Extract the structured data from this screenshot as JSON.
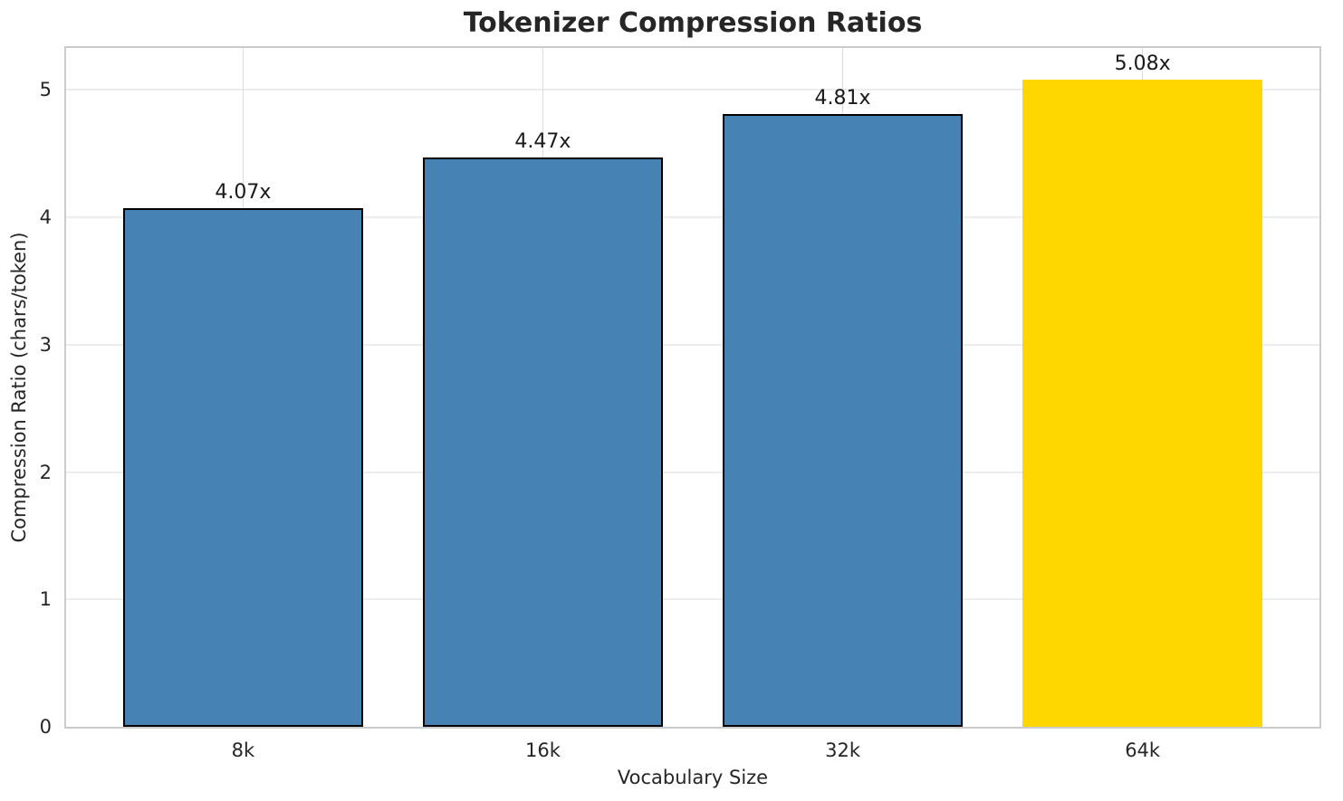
{
  "chart_data": {
    "type": "bar",
    "title": "Tokenizer Compression Ratios",
    "xlabel": "Vocabulary Size",
    "ylabel": "Compression Ratio (chars/token)",
    "categories": [
      "8k",
      "16k",
      "32k",
      "64k"
    ],
    "values": [
      4.07,
      4.47,
      4.81,
      5.08
    ],
    "bar_labels": [
      "4.07x",
      "4.47x",
      "4.81x",
      "5.08x"
    ],
    "bar_colors": [
      "#4682b4",
      "#4682b4",
      "#4682b4",
      "#ffd700"
    ],
    "bar_edge_colors": [
      "#000000",
      "#000000",
      "#000000",
      "none"
    ],
    "ylim": [
      0,
      5.33
    ],
    "yticks": [
      0,
      1,
      2,
      3,
      4,
      5
    ],
    "grid": true,
    "legend": "none",
    "colors": {
      "default_bar": "#4682b4",
      "highlight_bar": "#ffd700",
      "bar_edge": "#000000",
      "spine": "#cbcbcb",
      "gridline_horizontal": "#ededed",
      "gridline_vertical": "#dcdcdc",
      "text": "#262626"
    }
  }
}
